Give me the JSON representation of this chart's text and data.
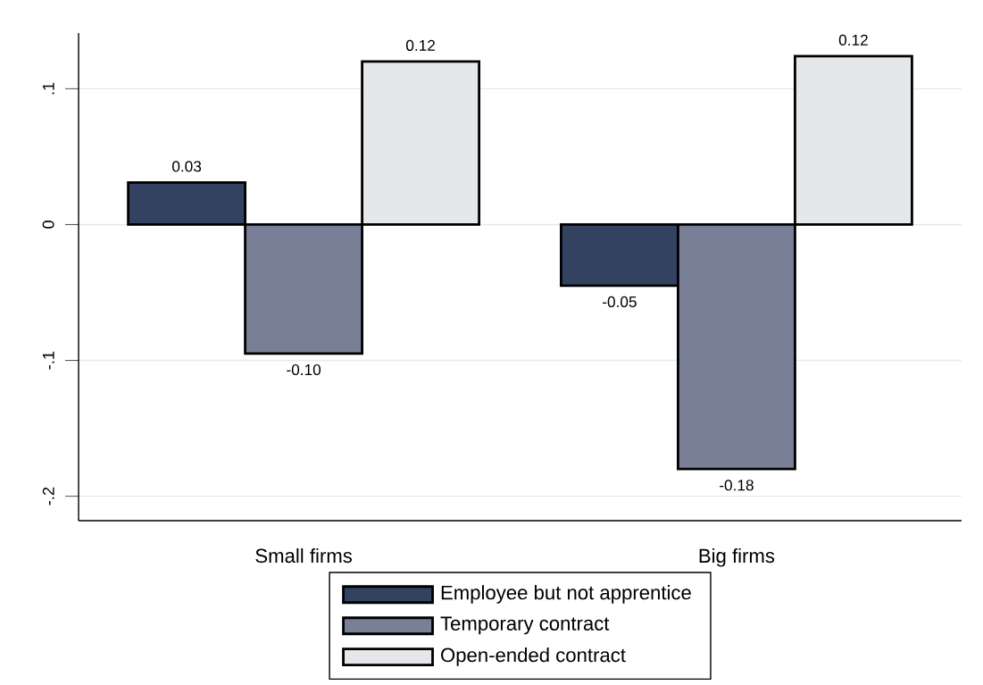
{
  "chart_data": {
    "type": "bar",
    "categories": [
      "Small firms",
      "Big firms"
    ],
    "series": [
      {
        "name": "Employee but not apprentice",
        "color": "#344262",
        "values": [
          0.031,
          -0.045
        ],
        "value_labels": [
          "0.03",
          "-0.05"
        ]
      },
      {
        "name": "Temporary contract",
        "color": "#787f97",
        "values": [
          -0.095,
          -0.18
        ],
        "value_labels": [
          "-0.10",
          "-0.18"
        ]
      },
      {
        "name": "Open-ended contract",
        "color": "#e6e7eb",
        "values": [
          0.12,
          0.124
        ],
        "value_labels": [
          "0.12",
          "0.12"
        ]
      }
    ],
    "ylim": [
      -0.218,
      0.141
    ],
    "yticks": [
      {
        "value": -0.2,
        "label": "-.2"
      },
      {
        "value": -0.1,
        "label": "-.1"
      },
      {
        "value": 0,
        "label": "0"
      },
      {
        "value": 0.1,
        "label": ".1"
      }
    ],
    "grid": "y",
    "legend": "bottom"
  }
}
